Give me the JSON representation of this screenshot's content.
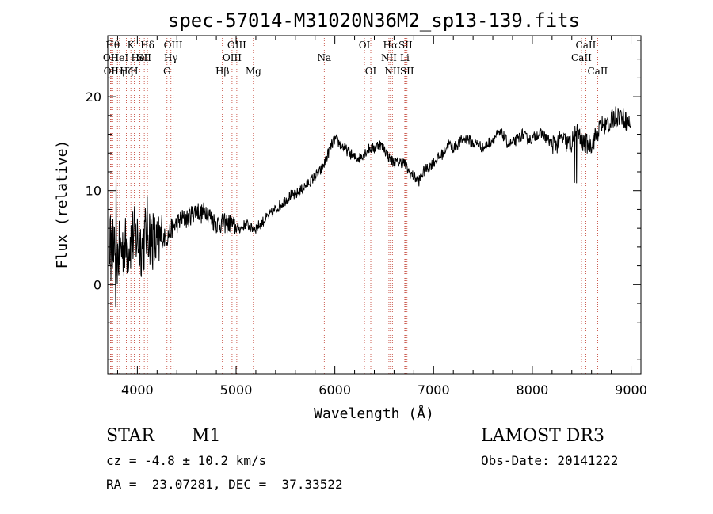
{
  "chart_data": {
    "type": "line",
    "title": "spec-57014-M31020N36M2_sp13-139.fits",
    "xlabel": "Wavelength (Å)",
    "ylabel": "Flux (relative)",
    "xlim": [
      3700,
      9100
    ],
    "ylim": [
      -9.5,
      26.5
    ],
    "x_ticks": [
      {
        "value": 4000,
        "label": "4000"
      },
      {
        "value": 5000,
        "label": "5000"
      },
      {
        "value": 6000,
        "label": "6000"
      },
      {
        "value": 7000,
        "label": "7000"
      },
      {
        "value": 8000,
        "label": "8000"
      },
      {
        "value": 9000,
        "label": "9000"
      }
    ],
    "y_ticks": [
      {
        "value": 0,
        "label": "0"
      },
      {
        "value": 10,
        "label": "10"
      },
      {
        "value": 20,
        "label": "20"
      }
    ],
    "grid": false,
    "line_color": "#000000",
    "marker_color": "#c0392b",
    "series": [
      {
        "x": [
          3720,
          3740,
          3760,
          3780,
          3800,
          3850,
          3900,
          3950,
          4000,
          4050,
          4100,
          4150,
          4200,
          4250,
          4300,
          4350,
          4400,
          4450,
          4500,
          4550,
          4600,
          4650,
          4700,
          4750,
          4800,
          4850,
          4900,
          4950,
          5000,
          5050,
          5100,
          5150,
          5200,
          5250,
          5300,
          5350,
          5400,
          5450,
          5500,
          5550,
          5600,
          5650,
          5700,
          5750,
          5800,
          5850,
          5900,
          5950,
          6000,
          6050,
          6100,
          6150,
          6200,
          6250,
          6300,
          6350,
          6400,
          6450,
          6500,
          6550,
          6600,
          6650,
          6700,
          6750,
          6800,
          6850,
          6900,
          6950,
          7000,
          7050,
          7100,
          7150,
          7200,
          7250,
          7300,
          7350,
          7400,
          7450,
          7500,
          7550,
          7600,
          7650,
          7700,
          7750,
          7800,
          7850,
          7900,
          7950,
          8000,
          8050,
          8100,
          8150,
          8200,
          8250,
          8300,
          8350,
          8400,
          8450,
          8500,
          8550,
          8600,
          8650,
          8700,
          8750,
          8800,
          8850,
          8900,
          8950,
          9000
        ],
        "y": [
          5,
          3,
          4,
          2,
          3,
          4,
          4,
          5,
          5,
          4,
          6,
          5,
          4,
          5,
          5,
          6,
          6.5,
          7,
          7,
          7.5,
          8,
          7.5,
          8,
          7,
          6.5,
          6.5,
          6.5,
          6.5,
          6,
          6,
          6.5,
          6,
          6,
          6.5,
          7,
          7.5,
          8,
          8.5,
          9,
          9.5,
          9.5,
          10,
          10.5,
          11,
          11.5,
          12,
          13,
          14.5,
          15.5,
          15,
          14.5,
          14,
          13.5,
          13.5,
          14,
          14.5,
          14.5,
          15,
          14.5,
          13.5,
          13,
          13,
          13,
          12,
          11.5,
          11,
          12,
          12.5,
          13,
          13.5,
          14,
          15,
          14.5,
          15,
          15.5,
          15.5,
          15,
          15,
          14.5,
          15,
          15.5,
          16,
          16,
          15,
          15,
          15.5,
          16,
          15.5,
          15.5,
          16,
          16,
          15.5,
          15,
          15,
          15.5,
          15,
          15,
          16.5,
          15,
          15,
          15,
          16,
          17,
          17,
          17.5,
          18,
          18,
          17.5,
          17
        ]
      }
    ],
    "lines": [
      {
        "x": 3750,
        "label": "Hθ",
        "row": 1
      },
      {
        "x": 3728,
        "label": "OII",
        "row": 2
      },
      {
        "x": 3734,
        "label": "OII",
        "row": 3
      },
      {
        "x": 3798,
        "label": "Hη",
        "row": 3
      },
      {
        "x": 3820,
        "label": "HeI",
        "row": 2
      },
      {
        "x": 3889,
        "label": "Hζ",
        "row": 3
      },
      {
        "x": 3934,
        "label": "K",
        "row": 1
      },
      {
        "x": 3968,
        "label": "H",
        "row": 3
      },
      {
        "x": 4026,
        "label": "HeI",
        "row": 2
      },
      {
        "x": 4070,
        "label": "SII",
        "row": 2
      },
      {
        "x": 4102,
        "label": "Hδ",
        "row": 1
      },
      {
        "x": 4300,
        "label": "G",
        "row": 3
      },
      {
        "x": 4340,
        "label": "Hγ",
        "row": 2
      },
      {
        "x": 4363,
        "label": "OIII",
        "row": 1
      },
      {
        "x": 4861,
        "label": "Hβ",
        "row": 3
      },
      {
        "x": 4959,
        "label": "OIII",
        "row": 2
      },
      {
        "x": 5007,
        "label": "OIII",
        "row": 1
      },
      {
        "x": 5175,
        "label": "Mg",
        "row": 3
      },
      {
        "x": 5893,
        "label": "Na",
        "row": 2
      },
      {
        "x": 6300,
        "label": "OI",
        "row": 1
      },
      {
        "x": 6364,
        "label": "OI",
        "row": 3
      },
      {
        "x": 6548,
        "label": "NII",
        "row": 2
      },
      {
        "x": 6563,
        "label": "Hα",
        "row": 1
      },
      {
        "x": 6583,
        "label": "NII",
        "row": 3
      },
      {
        "x": 6708,
        "label": "Li",
        "row": 2
      },
      {
        "x": 6716,
        "label": "SII",
        "row": 1
      },
      {
        "x": 6731,
        "label": "SII",
        "row": 3
      },
      {
        "x": 8498,
        "label": "CaII",
        "row": 2
      },
      {
        "x": 8542,
        "label": "CaII",
        "row": 1
      },
      {
        "x": 8662,
        "label": "CaII",
        "row": 3
      }
    ]
  },
  "info": {
    "object_class": "STAR",
    "subclass": "M1",
    "survey": "LAMOST DR3",
    "redshift": "cz = -4.8 ± 10.2 km/s",
    "obs_date": "Obs-Date: 20141222",
    "coords": "RA =  23.07281, DEC =  37.33522"
  }
}
